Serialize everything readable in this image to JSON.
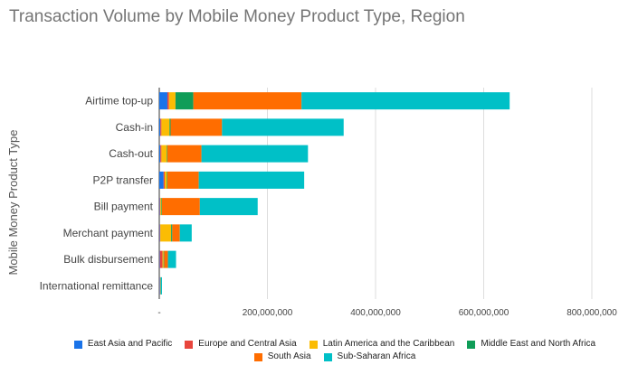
{
  "chart_data": {
    "type": "bar",
    "orientation": "horizontal",
    "stacked": true,
    "title": "Transaction Volume by Mobile Money Product Type, Region",
    "ylabel": "Mobile Money Product Type",
    "xlabel": "",
    "xlim": [
      0,
      800000000
    ],
    "x_ticks": [
      0,
      200000000,
      400000000,
      600000000,
      800000000
    ],
    "x_tick_labels": [
      "-",
      "200,000,000",
      "400,000,000",
      "600,000,000",
      "800,000,000"
    ],
    "grid": true,
    "legend_position": "bottom",
    "categories": [
      "Airtime top-up",
      "Cash-in",
      "Cash-out",
      "P2P transfer",
      "Bill payment",
      "Merchant payment",
      "Bulk disbursement",
      "International remittance"
    ],
    "series": [
      {
        "name": "East Asia and Pacific",
        "color": "#1a73e8",
        "values": [
          15000000,
          2000000,
          2000000,
          8000000,
          1000000,
          1000000,
          1000000,
          1000000
        ]
      },
      {
        "name": "Europe and Central Asia",
        "color": "#e8453c",
        "values": [
          3000000,
          2000000,
          2000000,
          2000000,
          1000000,
          1000000,
          5000000,
          500000
        ]
      },
      {
        "name": "Latin America and the Caribbean",
        "color": "#fbbc04",
        "values": [
          12000000,
          15000000,
          10000000,
          4000000,
          2000000,
          20000000,
          2000000,
          500000
        ]
      },
      {
        "name": "Middle East and North Africa",
        "color": "#0f9d58",
        "values": [
          33000000,
          2000000,
          1000000,
          1000000,
          1000000,
          2000000,
          1000000,
          500000
        ]
      },
      {
        "name": "South Asia",
        "color": "#ff6d00",
        "values": [
          200000000,
          95000000,
          63000000,
          58000000,
          70000000,
          14000000,
          7000000,
          500000
        ]
      },
      {
        "name": "Sub-Saharan Africa",
        "color": "#00c0c7",
        "values": [
          385000000,
          225000000,
          197000000,
          195000000,
          107000000,
          22000000,
          15000000,
          2000000
        ]
      }
    ]
  }
}
